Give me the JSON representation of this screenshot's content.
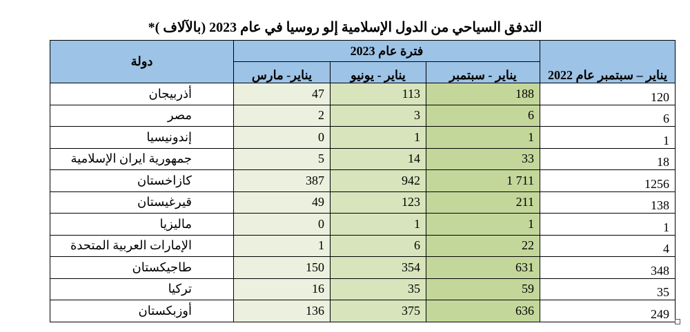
{
  "title": "التدفق السياحي من الدول الإسلامية إلو روسيا في عام 2023 (بالآلاف )*",
  "header": {
    "country": "دولة",
    "period_2023": "فترة عام 2023",
    "jan_mar": "يناير- مارس",
    "jan_jun": "يناير - يونيو",
    "jan_sep": "يناير - سبتمبر",
    "jan_sep_2022": "يناير – سبتمبر عام 2022"
  },
  "rows": [
    [
      "أذربيجان",
      "47",
      "113",
      "188",
      "120"
    ],
    [
      "مصر",
      "2",
      "3",
      "6",
      "6"
    ],
    [
      "إندونيسيا",
      "0",
      "1",
      "1",
      "1"
    ],
    [
      "جمهورية ايران الإسلامية",
      "5",
      "14",
      "33",
      "18"
    ],
    [
      "كازاخستان",
      "387",
      "942",
      "1 711",
      "1256"
    ],
    [
      "قيرغيستان",
      "49",
      "123",
      "211",
      "138"
    ],
    [
      "ماليزيا",
      "0",
      "1",
      "1",
      "1"
    ],
    [
      "الإمارات العربية المتحدة",
      "1",
      "6",
      "22",
      "4"
    ],
    [
      "طاجيكستان",
      "150",
      "354",
      "631",
      "348"
    ],
    [
      "تركيا",
      "16",
      "35",
      "59",
      "35"
    ],
    [
      "أوزبكستان",
      "136",
      "375",
      "636",
      "249"
    ]
  ]
}
